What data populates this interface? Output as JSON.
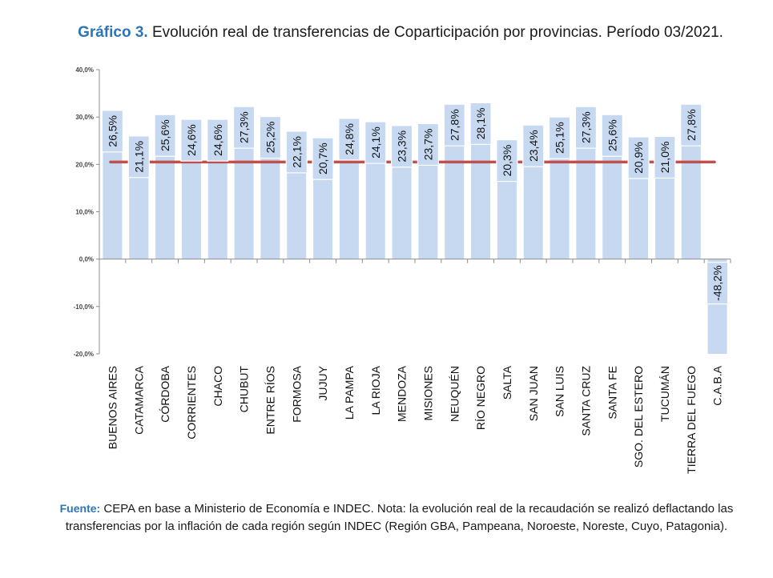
{
  "title": {
    "lead": "Gráfico 3.",
    "text": "Evolución real de transferencias de Coparticipación por provincias. Período 03/2021."
  },
  "footnote": {
    "lead": "Fuente:",
    "text": "CEPA en base a Ministerio de Economía e INDEC. Nota: la evolución real de la recaudación se realizó deflactando las transferencias por la inflación de cada región según INDEC (Región GBA, Pampeana, Noroeste, Noreste, Cuyo, Patagonia)."
  },
  "colors": {
    "bar": "#c6d9f1",
    "label_box": "#c6d9f1",
    "reference_line": "#c0504d",
    "title_accent": "#2e75b6"
  },
  "chart_data": {
    "type": "bar",
    "categories": [
      "BUENOS AIRES",
      "CATAMARCA",
      "CÓRDOBA",
      "CORRIENTES",
      "CHACO",
      "CHUBUT",
      "ENTRE RÍOS",
      "FORMOSA",
      "JUJUY",
      "LA PAMPA",
      "LA RIOJA",
      "MENDOZA",
      "MISIONES",
      "NEUQUÉN",
      "RÍO NEGRO",
      "SALTA",
      "SAN JUAN",
      "SAN LUIS",
      "SANTA CRUZ",
      "SANTA FE",
      "SGO. DEL ESTERO",
      "TUCUMÁN",
      "TIERRA DEL FUEGO",
      "C.A.B.A"
    ],
    "values": [
      26.5,
      21.1,
      25.6,
      24.6,
      24.6,
      27.3,
      25.2,
      22.1,
      20.7,
      24.8,
      24.1,
      23.3,
      23.7,
      27.8,
      28.1,
      20.3,
      23.4,
      25.1,
      27.3,
      25.6,
      20.9,
      21.0,
      27.8,
      -48.2
    ],
    "data_labels": [
      "26,5%",
      "21,1%",
      "25,6%",
      "24,6%",
      "24,6%",
      "27,3%",
      "25,2%",
      "22,1%",
      "20,7%",
      "24,8%",
      "24,1%",
      "23,3%",
      "23,7%",
      "27,8%",
      "28,1%",
      "20,3%",
      "23,4%",
      "25,1%",
      "27,3%",
      "25,6%",
      "20,9%",
      "21,0%",
      "27,8%",
      "-48,2%"
    ],
    "y_ticks": [
      -20,
      -10,
      0,
      10,
      20,
      30,
      40
    ],
    "y_tick_labels": [
      "-20,0%",
      "-10,0%",
      "0,0%",
      "10,0%",
      "20,0%",
      "30,0%",
      "40,0%"
    ],
    "ylim": [
      -20,
      40
    ],
    "reference_line": 20.5,
    "grid": false,
    "legend": "none"
  }
}
